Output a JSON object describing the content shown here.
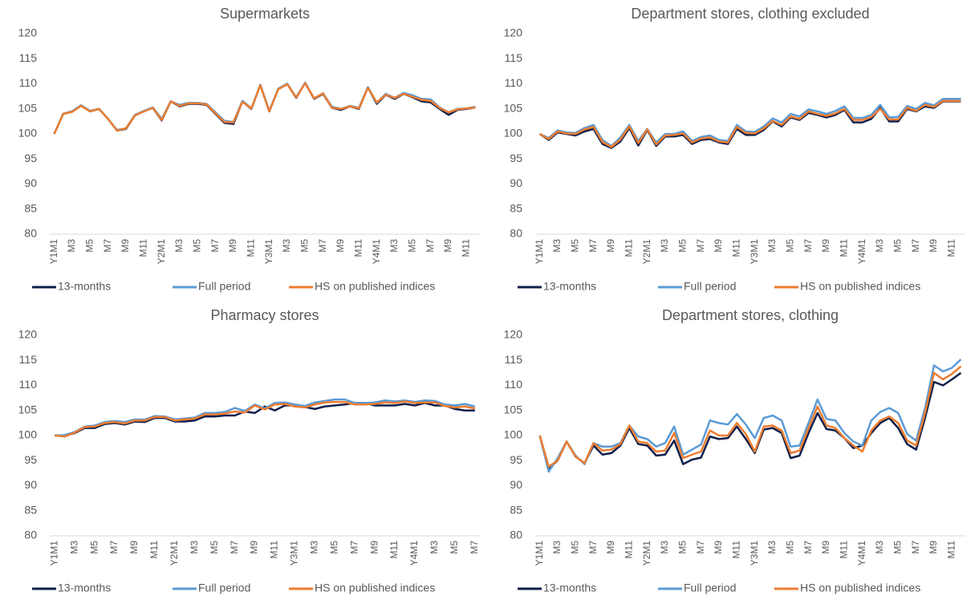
{
  "chart_data": [
    {
      "type": "line",
      "title": "Supermarkets",
      "categories": [
        "Y1M1",
        null,
        "M3",
        null,
        "M5",
        null,
        "M7",
        null,
        "M9",
        null,
        "M11",
        null,
        "Y2M1",
        null,
        "M3",
        null,
        "M5",
        null,
        "M7",
        null,
        "M9",
        null,
        "M11",
        null,
        "Y3M1",
        null,
        "M3",
        null,
        "M5",
        null,
        "M7",
        null,
        "M9",
        null,
        "M11",
        null,
        "Y4M1",
        null,
        "M3",
        null,
        "M5",
        null,
        "M7",
        null,
        "M9",
        null,
        "M11",
        null
      ],
      "ylim": [
        80,
        120
      ],
      "yticks": [
        80,
        85,
        90,
        95,
        100,
        105,
        110,
        115,
        120
      ],
      "grid": false,
      "series": [
        {
          "name": "13-months",
          "color": "#0f1f4b",
          "values": [
            100,
            104,
            104.5,
            105.7,
            104.5,
            105,
            103,
            100.7,
            101,
            103.7,
            104.5,
            105.2,
            102.7,
            106.5,
            105.5,
            106,
            106,
            105.8,
            104,
            102.2,
            102,
            106.5,
            105,
            109.8,
            104.5,
            109,
            110,
            107.2,
            110.2,
            107,
            108,
            105.2,
            104.8,
            105.5,
            105,
            109.3,
            106,
            107.8,
            107,
            108,
            107.3,
            106.5,
            106.3,
            105,
            103.8,
            104.8,
            105,
            105.3
          ]
        },
        {
          "name": "Full period",
          "color": "#5b9bd5",
          "values": [
            100,
            104,
            104.5,
            105.7,
            104.6,
            105,
            103,
            100.8,
            101.1,
            103.8,
            104.6,
            105.3,
            103,
            106.5,
            105.8,
            106.2,
            106.2,
            106,
            104.3,
            102.6,
            102.4,
            106.6,
            105.1,
            109.8,
            104.6,
            109,
            110,
            107.3,
            110.2,
            107.1,
            108.1,
            105.4,
            105,
            105.6,
            105.2,
            109.3,
            106.2,
            108,
            107.2,
            108.2,
            107.7,
            107,
            106.9,
            105.3,
            104.3,
            105,
            105.1,
            105.4
          ]
        },
        {
          "name": "HS on published indices",
          "color": "#ed7d31",
          "values": [
            100,
            104,
            104.4,
            105.6,
            104.5,
            105,
            103,
            100.7,
            101.1,
            103.7,
            104.5,
            105.2,
            102.8,
            106.5,
            105.6,
            106.1,
            106.1,
            105.9,
            104.1,
            102.4,
            102.3,
            106.4,
            105.1,
            109.7,
            104.5,
            108.9,
            109.9,
            107.3,
            110.1,
            107.1,
            108.1,
            105.2,
            105,
            105.5,
            105.1,
            109.2,
            106.3,
            107.8,
            107.2,
            108,
            107.4,
            106.8,
            106.6,
            105.2,
            104.3,
            104.9,
            105.1,
            105.3
          ]
        }
      ]
    },
    {
      "type": "line",
      "title": "Department stores, clothing excluded",
      "categories": [
        "Y1M1",
        null,
        "M3",
        null,
        "M5",
        null,
        "M7",
        null,
        "M9",
        null,
        "M11",
        null,
        "Y2M1",
        null,
        "M3",
        null,
        "M5",
        null,
        "M7",
        null,
        "M9",
        null,
        "M11",
        null,
        "Y3M1",
        null,
        "M3",
        null,
        "M5",
        null,
        "M7",
        null,
        "M9",
        null,
        "M11",
        null,
        "Y4M1",
        null,
        "M3",
        null,
        "M5",
        null,
        "M7",
        null,
        "M9",
        null,
        "M11",
        null
      ],
      "ylim": [
        80,
        120
      ],
      "yticks": [
        80,
        85,
        90,
        95,
        100,
        105,
        110,
        115,
        120
      ],
      "grid": false,
      "series": [
        {
          "name": "13-months",
          "color": "#0f1f4b",
          "values": [
            100,
            98.8,
            100.3,
            100,
            99.7,
            100.5,
            101,
            98,
            97.2,
            98.5,
            101.2,
            97.7,
            100.8,
            97.6,
            99.5,
            99.5,
            99.8,
            98,
            98.8,
            99,
            98.3,
            98,
            101,
            99.8,
            99.8,
            100.8,
            102.5,
            101.5,
            103.3,
            102.8,
            104.2,
            103.8,
            103.3,
            103.8,
            104.8,
            102.3,
            102.3,
            103,
            105.2,
            102.5,
            102.5,
            105,
            104.5,
            105.5,
            105.2,
            106.5,
            106.5,
            106.5
          ]
        },
        {
          "name": "Full period",
          "color": "#5b9bd5",
          "values": [
            100,
            99.2,
            100.7,
            100.3,
            100.2,
            101.2,
            101.8,
            98.8,
            97.6,
            99.3,
            101.8,
            98.6,
            101,
            98.3,
            100,
            100,
            100.5,
            98.6,
            99.4,
            99.7,
            98.8,
            98.6,
            101.8,
            100.5,
            100.4,
            101.5,
            103.1,
            102.3,
            104,
            103.5,
            104.9,
            104.5,
            104,
            104.6,
            105.5,
            103.2,
            103.2,
            103.8,
            105.8,
            103.3,
            103.4,
            105.6,
            105,
            106.2,
            105.7,
            107,
            107,
            107
          ]
        },
        {
          "name": "HS on published indices",
          "color": "#ed7d31",
          "values": [
            100,
            99,
            100.5,
            100.1,
            100,
            100.9,
            101.4,
            98.4,
            97.4,
            98.9,
            101.5,
            98.2,
            100.9,
            97.9,
            99.7,
            99.8,
            100.1,
            98.3,
            99.1,
            99.3,
            98.5,
            98.3,
            101.4,
            100.2,
            100.1,
            101.1,
            102.6,
            101.8,
            103.5,
            103,
            104.5,
            104,
            103.6,
            104.1,
            105,
            102.8,
            102.8,
            103.4,
            105,
            102.9,
            102.9,
            105.2,
            104.6,
            105.8,
            105.4,
            106.6,
            106.6,
            106.6
          ]
        }
      ]
    },
    {
      "type": "line",
      "title": "Pharmacy stores",
      "categories": [
        "Y1M1",
        null,
        "M3",
        null,
        "M5",
        null,
        "M7",
        null,
        "M9",
        null,
        "M11",
        null,
        "Y2M1",
        null,
        "M3",
        null,
        "M5",
        null,
        "M7",
        null,
        "M9",
        null,
        "M11",
        null,
        "Y3M1",
        null,
        "M3",
        null,
        "M5",
        null,
        "M7",
        null,
        "M9",
        null,
        "M11",
        null,
        "Y4M1",
        null,
        "M3",
        null,
        "M5",
        null,
        "M7"
      ],
      "ylim": [
        80,
        120
      ],
      "yticks": [
        80,
        85,
        90,
        95,
        100,
        105,
        110,
        115,
        120
      ],
      "grid": false,
      "series": [
        {
          "name": "13-months",
          "color": "#0f1f4b",
          "values": [
            100,
            100,
            100.5,
            101.5,
            101.5,
            102.3,
            102.5,
            102.2,
            102.8,
            102.7,
            103.5,
            103.5,
            102.8,
            102.8,
            103,
            103.8,
            103.8,
            104,
            104,
            104.8,
            104.5,
            105.8,
            105,
            106,
            106,
            105.7,
            105.3,
            105.8,
            106,
            106.2,
            106.5,
            106.5,
            106,
            106,
            106,
            106.3,
            106,
            106.5,
            106,
            106,
            105.3,
            105,
            105
          ]
        },
        {
          "name": "Full period",
          "color": "#5b9bd5",
          "values": [
            100,
            100.1,
            100.7,
            101.8,
            102,
            102.7,
            102.9,
            102.7,
            103.2,
            103.2,
            103.9,
            103.8,
            103.2,
            103.4,
            103.6,
            104.5,
            104.5,
            104.7,
            105.5,
            104.9,
            106.2,
            105.4,
            106.5,
            106.6,
            106.2,
            105.9,
            106.6,
            106.9,
            107.2,
            107.2,
            106.5,
            106.5,
            106.6,
            107,
            106.8,
            107,
            106.7,
            107,
            106.9,
            106.2,
            106,
            106.3,
            105.8
          ]
        },
        {
          "name": "HS on published indices",
          "color": "#ed7d31",
          "values": [
            100,
            99.8,
            100.6,
            101.7,
            101.8,
            102.5,
            102.7,
            102.4,
            103,
            103,
            103.7,
            103.7,
            103,
            103.2,
            103.4,
            104.2,
            104.2,
            104.4,
            104.8,
            104.6,
            106,
            105.2,
            106.2,
            106.3,
            105.8,
            105.6,
            106.2,
            106.6,
            106.7,
            106.7,
            106.2,
            106.2,
            106.3,
            106.6,
            106.5,
            106.8,
            106.5,
            106.6,
            106.6,
            105.9,
            105.6,
            105.8,
            105.4
          ]
        }
      ]
    },
    {
      "type": "line",
      "title": "Department stores, clothing",
      "categories": [
        "Y1M1",
        null,
        "M3",
        null,
        "M5",
        null,
        "M7",
        null,
        "M9",
        null,
        "M11",
        null,
        "Y2M1",
        null,
        "M3",
        null,
        "M5",
        null,
        "M7",
        null,
        "M9",
        null,
        "M11",
        null,
        "Y3M1",
        null,
        "M3",
        null,
        "M5",
        null,
        "M7",
        null,
        "M9",
        null,
        "M11",
        null,
        "Y4M1",
        null,
        "M3",
        null,
        "M5",
        null,
        "M7",
        null,
        "M9",
        null,
        "M11",
        null
      ],
      "ylim": [
        80,
        120
      ],
      "yticks": [
        80,
        85,
        90,
        95,
        100,
        105,
        110,
        115,
        120
      ],
      "grid": false,
      "series": [
        {
          "name": "13-months",
          "color": "#0f1f4b",
          "values": [
            100,
            93.5,
            95,
            98.8,
            95.8,
            94.5,
            98,
            96.2,
            96.5,
            98,
            101.5,
            98.3,
            98,
            96,
            96.2,
            99,
            94.3,
            95.2,
            95.6,
            99.8,
            99.3,
            99.5,
            101.8,
            99.3,
            96.5,
            101.2,
            101.5,
            100.5,
            95.5,
            96,
            100.5,
            104.5,
            101.3,
            101,
            99.5,
            97.5,
            98,
            100.5,
            102.5,
            103.5,
            101.5,
            98.3,
            97.2,
            103.5,
            110.7,
            110,
            111.2,
            112.5
          ]
        },
        {
          "name": "Full period",
          "color": "#5b9bd5",
          "values": [
            100,
            92.8,
            95.5,
            98.8,
            96,
            94.3,
            98.5,
            97.8,
            97.8,
            98.5,
            102,
            99.8,
            99.3,
            97.8,
            98.5,
            101.8,
            96.2,
            97.2,
            98.2,
            103,
            102.5,
            102.2,
            104.3,
            102.2,
            99.5,
            103.5,
            104,
            103,
            97.8,
            98,
            102.5,
            107.2,
            103.3,
            103,
            100.5,
            98.8,
            98,
            103,
            104.7,
            105.5,
            104.5,
            100.3,
            99,
            105.5,
            114,
            112.8,
            113.5,
            115.2
          ]
        },
        {
          "name": "HS on published indices",
          "color": "#ed7d31",
          "values": [
            100,
            93.8,
            95,
            98.8,
            95.8,
            94.5,
            98.5,
            97,
            97.2,
            98.3,
            102,
            98.8,
            98.5,
            96.8,
            97,
            100.5,
            95.5,
            96.2,
            96.8,
            101,
            100,
            100,
            102.5,
            100.3,
            96.8,
            101.8,
            102,
            101,
            96.5,
            97,
            101.5,
            105.8,
            102,
            101.5,
            99.5,
            98,
            96.8,
            101,
            103,
            103.8,
            102.5,
            99,
            98,
            104.5,
            112.5,
            111.2,
            112.3,
            113.8
          ]
        }
      ]
    }
  ]
}
